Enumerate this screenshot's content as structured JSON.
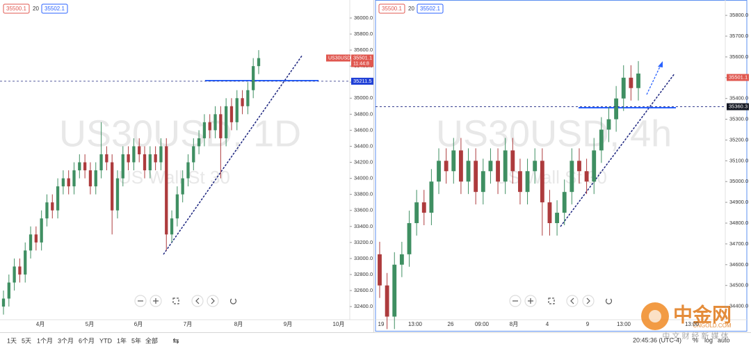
{
  "chart_data": [
    {
      "type": "candlestick",
      "symbol": "US30USD",
      "watermark": "US30USD, 1D",
      "watermark_sub": "US Wall St 30",
      "legend": [
        "35500.1",
        "20",
        "35502.1"
      ],
      "ylim": [
        32236,
        36225
      ],
      "yticks": [
        {
          "value": 32400,
          "label": "32400.0"
        },
        {
          "value": 32600,
          "label": "32600.0"
        },
        {
          "value": 32800,
          "label": "32800.0"
        },
        {
          "value": 33000,
          "label": "33000.0"
        },
        {
          "value": 33200,
          "label": "33200.0"
        },
        {
          "value": 33400,
          "label": "33400.0"
        },
        {
          "value": 33600,
          "label": "33600.0"
        },
        {
          "value": 33800,
          "label": "33800.0"
        },
        {
          "value": 34000,
          "label": "34000.0"
        },
        {
          "value": 34200,
          "label": "34200.0"
        },
        {
          "value": 34400,
          "label": "34400.0"
        },
        {
          "value": 34600,
          "label": "34600.0"
        },
        {
          "value": 34800,
          "label": "34800.0"
        },
        {
          "value": 35000,
          "label": "35000.0"
        },
        {
          "value": 35200,
          "label": "35200.0"
        },
        {
          "value": 35400,
          "label": "35400.0"
        },
        {
          "value": 35600,
          "label": "35600.0"
        },
        {
          "value": 35800,
          "label": "35800.0"
        },
        {
          "value": 36000,
          "label": "36000.0"
        }
      ],
      "xticks": [
        "4月",
        "5月",
        "6月",
        "7月",
        "8月",
        "9月",
        "10月"
      ],
      "last_price": 35501.1,
      "countdown": "11:44:8",
      "price_line": 35211.5,
      "candles": [
        [
          32400,
          32600,
          32300,
          32500
        ],
        [
          32500,
          32800,
          32400,
          32700
        ],
        [
          32700,
          33000,
          32600,
          32900
        ],
        [
          32900,
          33000,
          32700,
          32800
        ],
        [
          32800,
          33200,
          32700,
          33100
        ],
        [
          33100,
          33400,
          33000,
          33300
        ],
        [
          33300,
          33400,
          33100,
          33200
        ],
        [
          33200,
          33600,
          33100,
          33500
        ],
        [
          33500,
          33800,
          33400,
          33700
        ],
        [
          33700,
          33800,
          33500,
          33600
        ],
        [
          33600,
          34000,
          33500,
          33900
        ],
        [
          33900,
          34100,
          33800,
          34000
        ],
        [
          34000,
          34100,
          33800,
          33900
        ],
        [
          33900,
          34200,
          33800,
          34100
        ],
        [
          34100,
          34300,
          34000,
          34200
        ],
        [
          34200,
          34300,
          34000,
          34100
        ],
        [
          34100,
          34200,
          33800,
          33900
        ],
        [
          33900,
          34200,
          33800,
          34100
        ],
        [
          34100,
          34700,
          34000,
          34300
        ],
        [
          34300,
          34400,
          34100,
          34200
        ],
        [
          34200,
          34300,
          33300,
          33600
        ],
        [
          33600,
          34100,
          33500,
          34000
        ],
        [
          34000,
          34400,
          33900,
          34300
        ],
        [
          34300,
          34400,
          34100,
          34200
        ],
        [
          34200,
          34500,
          34100,
          34400
        ],
        [
          34400,
          34500,
          34200,
          34300
        ],
        [
          34300,
          34400,
          34000,
          34100
        ],
        [
          34100,
          34400,
          34000,
          34300
        ],
        [
          34300,
          34400,
          34100,
          34200
        ],
        [
          34200,
          34500,
          34100,
          34400
        ],
        [
          34400,
          34500,
          33100,
          33300
        ],
        [
          33300,
          33600,
          33200,
          33500
        ],
        [
          33500,
          33900,
          33400,
          33800
        ],
        [
          33800,
          34100,
          33700,
          34000
        ],
        [
          34000,
          34300,
          33900,
          34200
        ],
        [
          34200,
          34500,
          34100,
          34400
        ],
        [
          34400,
          34600,
          34300,
          34500
        ],
        [
          34500,
          34800,
          34400,
          34700
        ],
        [
          34700,
          34800,
          34500,
          34600
        ],
        [
          34600,
          34900,
          34500,
          34800
        ],
        [
          34800,
          34900,
          34000,
          34500
        ],
        [
          34500,
          35000,
          34400,
          34900
        ],
        [
          34900,
          35000,
          34600,
          34700
        ],
        [
          34700,
          35100,
          34600,
          35000
        ],
        [
          35000,
          35100,
          34800,
          34900
        ],
        [
          34900,
          35200,
          34800,
          35100
        ],
        [
          35100,
          35500,
          35000,
          35400
        ],
        [
          35400,
          35600,
          35300,
          35500
        ]
      ]
    },
    {
      "type": "candlestick",
      "watermark": "US30USD, 4h",
      "watermark_sub": "US Wall St 30",
      "legend": [
        "35500.1",
        "20",
        "35502.1"
      ],
      "ylim": [
        34335,
        35874
      ],
      "yticks": [
        {
          "value": 34400,
          "label": "34400.0"
        },
        {
          "value": 34500,
          "label": "34500.0"
        },
        {
          "value": 34600,
          "label": "34600.0"
        },
        {
          "value": 34700,
          "label": "34700.0"
        },
        {
          "value": 34800,
          "label": "34800.0"
        },
        {
          "value": 34900,
          "label": "34900.0"
        },
        {
          "value": 35000,
          "label": "35000.0"
        },
        {
          "value": 35100,
          "label": "35100.0"
        },
        {
          "value": 35200,
          "label": "35200.0"
        },
        {
          "value": 35300,
          "label": "35300.0"
        },
        {
          "value": 35400,
          "label": "35400.0"
        },
        {
          "value": 35500,
          "label": "35500.0"
        },
        {
          "value": 35600,
          "label": "35600.0"
        },
        {
          "value": 35700,
          "label": "35700.0"
        },
        {
          "value": 35800,
          "label": "35800.0"
        }
      ],
      "xticks": [
        "19",
        "13:00",
        "26",
        "09:00",
        "8月",
        "4",
        "9",
        "13:00",
        "13:00"
      ],
      "last_price": 35501.1,
      "price_line": 35360.3,
      "candles": [
        [
          34650,
          34710,
          34440,
          34500
        ],
        [
          34500,
          34560,
          34290,
          34350
        ],
        [
          34350,
          34660,
          34290,
          34600
        ],
        [
          34600,
          34710,
          34540,
          34650
        ],
        [
          34650,
          34860,
          34590,
          34800
        ],
        [
          34800,
          34960,
          34740,
          34900
        ],
        [
          34900,
          34960,
          34790,
          34850
        ],
        [
          34850,
          35060,
          34790,
          35000
        ],
        [
          35000,
          35160,
          34940,
          35100
        ],
        [
          35100,
          35160,
          34990,
          35050
        ],
        [
          35050,
          35210,
          34990,
          35150
        ],
        [
          35150,
          35210,
          34940,
          35000
        ],
        [
          35000,
          35160,
          34940,
          35100
        ],
        [
          35100,
          35160,
          34890,
          34950
        ],
        [
          34950,
          35110,
          34890,
          35050
        ],
        [
          35050,
          35160,
          34990,
          35100
        ],
        [
          35100,
          35160,
          34940,
          35000
        ],
        [
          35000,
          35210,
          34940,
          35150
        ],
        [
          35150,
          35210,
          34990,
          35050
        ],
        [
          35050,
          35110,
          34890,
          34950
        ],
        [
          34950,
          35110,
          34890,
          35050
        ],
        [
          35050,
          35160,
          34990,
          35100
        ],
        [
          35100,
          35160,
          34740,
          34900
        ],
        [
          34900,
          34960,
          34740,
          34800
        ],
        [
          34800,
          34910,
          34740,
          34850
        ],
        [
          34850,
          35010,
          34790,
          34950
        ],
        [
          34950,
          35160,
          34890,
          35100
        ],
        [
          35100,
          35160,
          34990,
          35050
        ],
        [
          35050,
          35110,
          34940,
          35000
        ],
        [
          35000,
          35210,
          34940,
          35150
        ],
        [
          35150,
          35310,
          35090,
          35250
        ],
        [
          35250,
          35360,
          35190,
          35300
        ],
        [
          35300,
          35460,
          35240,
          35400
        ],
        [
          35400,
          35560,
          35340,
          35500
        ],
        [
          35500,
          35560,
          35390,
          35450
        ],
        [
          35450,
          35580,
          35390,
          35520
        ]
      ]
    }
  ],
  "toolbar": [
    "1天",
    "5天",
    "1个月",
    "3个月",
    "6个月",
    "YTD",
    "1年",
    "5年",
    "全部"
  ],
  "status": {
    "time": "20:45:36 (UTC-4)",
    "percent": "%",
    "log": "log",
    "auto": "auto"
  },
  "logo": {
    "name": "中金网",
    "domain": "CNGOLD.COM",
    "slogan": "中 文 财 经 新 媒 体"
  }
}
